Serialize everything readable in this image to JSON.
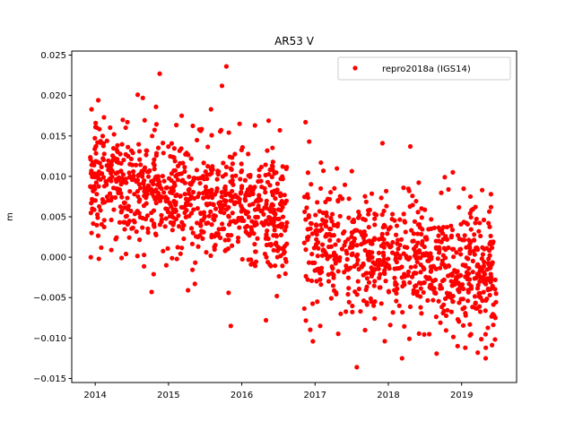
{
  "chart_data": {
    "type": "scatter",
    "title": "AR53 V",
    "xlabel": "",
    "ylabel": "m",
    "xlim": [
      2013.68,
      2019.75
    ],
    "ylim": [
      -0.0155,
      0.0255
    ],
    "xticks": [
      2014,
      2015,
      2016,
      2017,
      2018,
      2019
    ],
    "yticks": [
      -0.015,
      -0.01,
      -0.005,
      0.0,
      0.005,
      0.01,
      0.015,
      0.02,
      0.025
    ],
    "ytick_labels": [
      "−0.015",
      "−0.010",
      "−0.005",
      "0.000",
      "0.005",
      "0.010",
      "0.015",
      "0.020",
      "0.025"
    ],
    "legend": {
      "placement": "top-right",
      "entries": [
        "repro2018a (IGS14)"
      ]
    },
    "series": [
      {
        "name": "repro2018a (IGS14)",
        "color": "#ff0000",
        "x_range": [
          2013.93,
          2019.47
        ],
        "gap": [
          2016.62,
          2016.85
        ],
        "trend": {
          "start": 0.0098,
          "end": -0.0005
        },
        "scatter_sigma": 0.0038,
        "points": [
          [
            2013.95,
            0.0183
          ],
          [
            2013.94,
            0.0
          ],
          [
            2013.95,
            0.003
          ],
          [
            2014.05,
            -0.0002
          ],
          [
            2014.12,
            0.0173
          ],
          [
            2014.36,
            -0.0001
          ],
          [
            2014.42,
            0.0004
          ],
          [
            2014.58,
            0.0201
          ],
          [
            2014.65,
            0.0197
          ],
          [
            2014.77,
            -0.0043
          ],
          [
            2014.83,
            0.0186
          ],
          [
            2014.88,
            0.0227
          ],
          [
            2014.97,
            -0.001
          ],
          [
            2015.18,
            0.0175
          ],
          [
            2015.36,
            -0.0033
          ],
          [
            2015.42,
            0.0158
          ],
          [
            2015.58,
            0.0183
          ],
          [
            2015.73,
            0.0212
          ],
          [
            2015.79,
            0.0236
          ],
          [
            2015.85,
            -0.0085
          ],
          [
            2015.82,
            -0.0044
          ],
          [
            2015.97,
            0.0165
          ],
          [
            2016.18,
            0.0163
          ],
          [
            2016.33,
            -0.0078
          ],
          [
            2016.52,
            0.0157
          ],
          [
            2016.87,
            0.0167
          ],
          [
            2016.92,
            0.0143
          ],
          [
            2016.97,
            -0.0104
          ],
          [
            2017.03,
            -0.0055
          ],
          [
            2017.07,
            -0.0085
          ],
          [
            2017.08,
            0.0117
          ],
          [
            2017.35,
            -0.007
          ],
          [
            2017.57,
            -0.0136
          ],
          [
            2017.62,
            -0.0067
          ],
          [
            2017.92,
            0.0141
          ],
          [
            2018.15,
            -0.006
          ],
          [
            2018.3,
            0.0137
          ],
          [
            2018.71,
            -0.0081
          ],
          [
            2018.77,
            0.0099
          ],
          [
            2018.88,
            0.0105
          ],
          [
            2019.05,
            -0.0112
          ],
          [
            2019.12,
            0.0075
          ],
          [
            2019.22,
            -0.0118
          ],
          [
            2019.28,
            0.0083
          ],
          [
            2019.33,
            -0.0112
          ],
          [
            2019.4,
            0.0078
          ],
          [
            2019.46,
            -0.0075
          ],
          [
            2019.47,
            -0.0045
          ]
        ]
      }
    ]
  }
}
